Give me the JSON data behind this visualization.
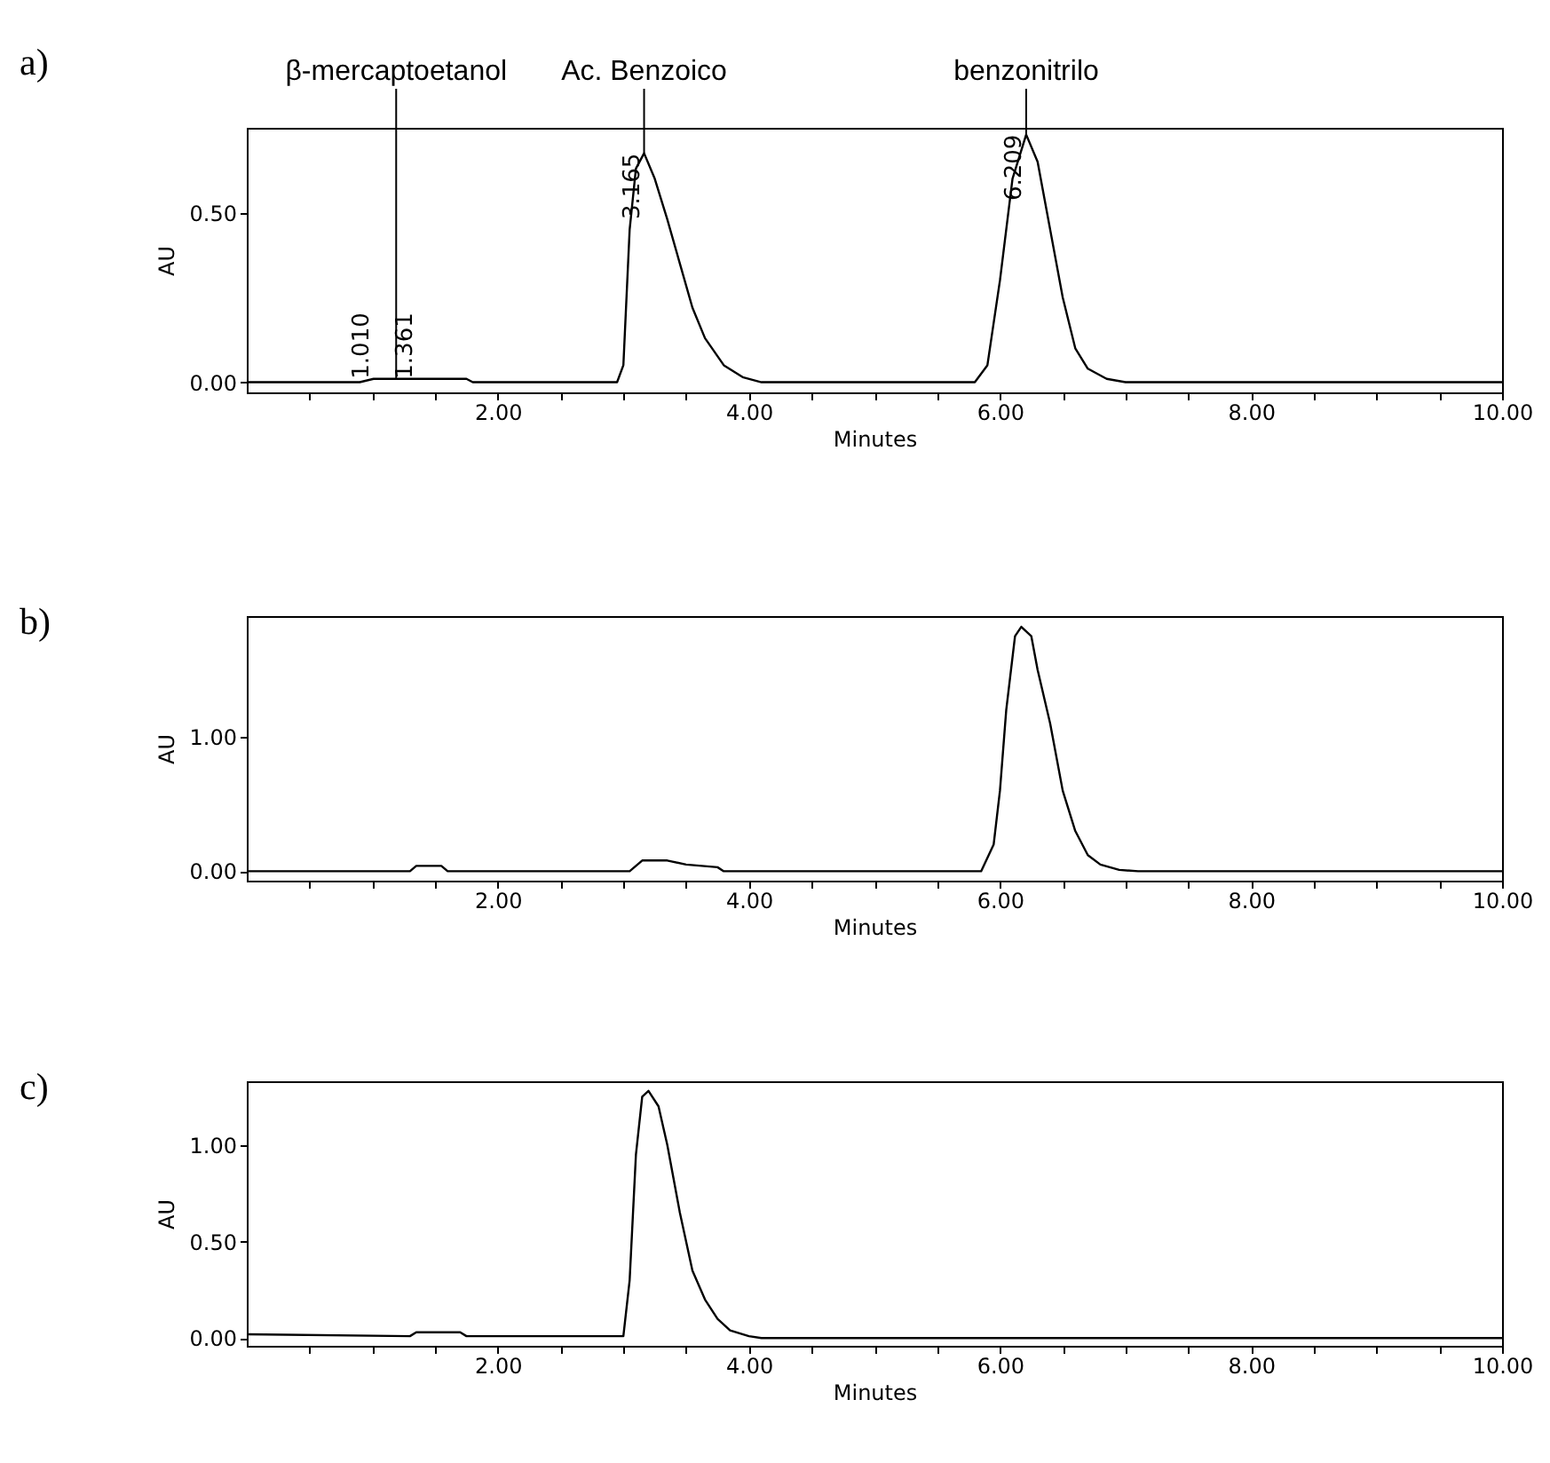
{
  "chart_data": [
    {
      "type": "line",
      "title": "a)",
      "xlabel": "Minutes",
      "ylabel": "AU",
      "xlim": [
        0,
        10
      ],
      "ylim": [
        -0.03,
        0.75
      ],
      "xticks": [
        {
          "value": 0.5,
          "label": null
        },
        {
          "value": 1,
          "label": null
        },
        {
          "value": 1.5,
          "label": null
        },
        {
          "value": 2,
          "label": "2.00"
        },
        {
          "value": 2.5,
          "label": null
        },
        {
          "value": 3,
          "label": null
        },
        {
          "value": 3.5,
          "label": null
        },
        {
          "value": 4,
          "label": "4.00"
        },
        {
          "value": 4.5,
          "label": null
        },
        {
          "value": 5,
          "label": null
        },
        {
          "value": 5.5,
          "label": null
        },
        {
          "value": 6,
          "label": "6.00"
        },
        {
          "value": 6.5,
          "label": null
        },
        {
          "value": 7,
          "label": null
        },
        {
          "value": 7.5,
          "label": null
        },
        {
          "value": 8,
          "label": "8.00"
        },
        {
          "value": 8.5,
          "label": null
        },
        {
          "value": 9,
          "label": null
        },
        {
          "value": 9.5,
          "label": null
        },
        {
          "value": 10,
          "label": "10.00"
        }
      ],
      "yticks": [
        {
          "value": 0,
          "label": "0.00"
        },
        {
          "value": 0.5,
          "label": "0.50"
        }
      ],
      "grid": false,
      "legend": false,
      "x": [
        0,
        0.9,
        1.01,
        1.19,
        1.361,
        1.5,
        1.75,
        1.8,
        2.95,
        3.0,
        3.05,
        3.1,
        3.165,
        3.25,
        3.35,
        3.45,
        3.55,
        3.65,
        3.8,
        3.95,
        4.1,
        5.8,
        5.9,
        6.0,
        6.1,
        6.209,
        6.3,
        6.4,
        6.5,
        6.6,
        6.7,
        6.85,
        7.0,
        10
      ],
      "series": [
        {
          "color": "#000000",
          "values": [
            0,
            0,
            0.01,
            0.01,
            0.01,
            0.01,
            0.01,
            0,
            0,
            0.05,
            0.45,
            0.63,
            0.675,
            0.6,
            0.48,
            0.35,
            0.22,
            0.13,
            0.05,
            0.015,
            0,
            0,
            0.05,
            0.3,
            0.6,
            0.73,
            0.65,
            0.45,
            0.25,
            0.1,
            0.04,
            0.01,
            0,
            0
          ]
        }
      ],
      "annotations": [
        {
          "text": "β-mercaptoetanol",
          "x": 1.19,
          "y": 0.01
        },
        {
          "text": "Ac. Benzoico",
          "x": 3.165,
          "y": 0.675
        },
        {
          "text": "benzonitrilo",
          "x": 6.209,
          "y": 0.73
        },
        {
          "text": "1.010",
          "x": 1.01,
          "y": 0.01
        },
        {
          "text": "1.361",
          "x": 1.361,
          "y": 0.01
        },
        {
          "text": "3.165",
          "x": 3.165,
          "y": 0.675
        },
        {
          "text": "6.209",
          "x": 6.209,
          "y": 0.73
        }
      ]
    },
    {
      "type": "line",
      "title": "b)",
      "xlabel": "Minutes",
      "ylabel": "AU",
      "xlim": [
        0,
        10
      ],
      "ylim": [
        -0.07,
        1.9
      ],
      "xticks": [
        {
          "value": 0.5,
          "label": null
        },
        {
          "value": 1,
          "label": null
        },
        {
          "value": 1.5,
          "label": null
        },
        {
          "value": 2,
          "label": "2.00"
        },
        {
          "value": 2.5,
          "label": null
        },
        {
          "value": 3,
          "label": null
        },
        {
          "value": 3.5,
          "label": null
        },
        {
          "value": 4,
          "label": "4.00"
        },
        {
          "value": 4.5,
          "label": null
        },
        {
          "value": 5,
          "label": null
        },
        {
          "value": 5.5,
          "label": null
        },
        {
          "value": 6,
          "label": "6.00"
        },
        {
          "value": 6.5,
          "label": null
        },
        {
          "value": 7,
          "label": null
        },
        {
          "value": 7.5,
          "label": null
        },
        {
          "value": 8,
          "label": "8.00"
        },
        {
          "value": 8.5,
          "label": null
        },
        {
          "value": 9,
          "label": null
        },
        {
          "value": 9.5,
          "label": null
        },
        {
          "value": 10,
          "label": "10.00"
        }
      ],
      "yticks": [
        {
          "value": 0,
          "label": "0.00"
        },
        {
          "value": 1,
          "label": "1.00"
        }
      ],
      "grid": false,
      "legend": false,
      "x": [
        0,
        1.3,
        1.35,
        1.55,
        1.6,
        3.05,
        3.15,
        3.35,
        3.5,
        3.75,
        3.8,
        5.85,
        5.95,
        6.0,
        6.05,
        6.12,
        6.17,
        6.25,
        6.3,
        6.4,
        6.5,
        6.6,
        6.7,
        6.8,
        6.95,
        7.1,
        10
      ],
      "series": [
        {
          "color": "#000000",
          "values": [
            0,
            0,
            0.04,
            0.04,
            0,
            0,
            0.08,
            0.08,
            0.05,
            0.03,
            0,
            0,
            0.2,
            0.6,
            1.2,
            1.75,
            1.82,
            1.75,
            1.5,
            1.1,
            0.6,
            0.3,
            0.12,
            0.05,
            0.01,
            0,
            0
          ]
        }
      ]
    },
    {
      "type": "line",
      "title": "c)",
      "xlabel": "Minutes",
      "ylabel": "AU",
      "xlim": [
        0,
        10
      ],
      "ylim": [
        -0.04,
        1.33
      ],
      "xticks": [
        {
          "value": 0.5,
          "label": null
        },
        {
          "value": 1,
          "label": null
        },
        {
          "value": 1.5,
          "label": null
        },
        {
          "value": 2,
          "label": "2.00"
        },
        {
          "value": 2.5,
          "label": null
        },
        {
          "value": 3,
          "label": null
        },
        {
          "value": 3.5,
          "label": null
        },
        {
          "value": 4,
          "label": "4.00"
        },
        {
          "value": 4.5,
          "label": null
        },
        {
          "value": 5,
          "label": null
        },
        {
          "value": 5.5,
          "label": null
        },
        {
          "value": 6,
          "label": "6.00"
        },
        {
          "value": 6.5,
          "label": null
        },
        {
          "value": 7,
          "label": null
        },
        {
          "value": 7.5,
          "label": null
        },
        {
          "value": 8,
          "label": "8.00"
        },
        {
          "value": 8.5,
          "label": null
        },
        {
          "value": 9,
          "label": null
        },
        {
          "value": 9.5,
          "label": null
        },
        {
          "value": 10,
          "label": "10.00"
        }
      ],
      "yticks": [
        {
          "value": 0,
          "label": "0.00"
        },
        {
          "value": 0.5,
          "label": "0.50"
        },
        {
          "value": 1,
          "label": "1.00"
        }
      ],
      "grid": false,
      "legend": false,
      "x": [
        0,
        1.3,
        1.35,
        1.7,
        1.75,
        3.0,
        3.05,
        3.1,
        3.15,
        3.2,
        3.28,
        3.35,
        3.45,
        3.55,
        3.65,
        3.75,
        3.85,
        4.0,
        4.1,
        10
      ],
      "series": [
        {
          "color": "#000000",
          "values": [
            0.02,
            0.01,
            0.03,
            0.03,
            0.01,
            0.01,
            0.3,
            0.95,
            1.25,
            1.28,
            1.2,
            1.0,
            0.65,
            0.35,
            0.2,
            0.1,
            0.04,
            0.01,
            0,
            0
          ]
        }
      ]
    }
  ]
}
